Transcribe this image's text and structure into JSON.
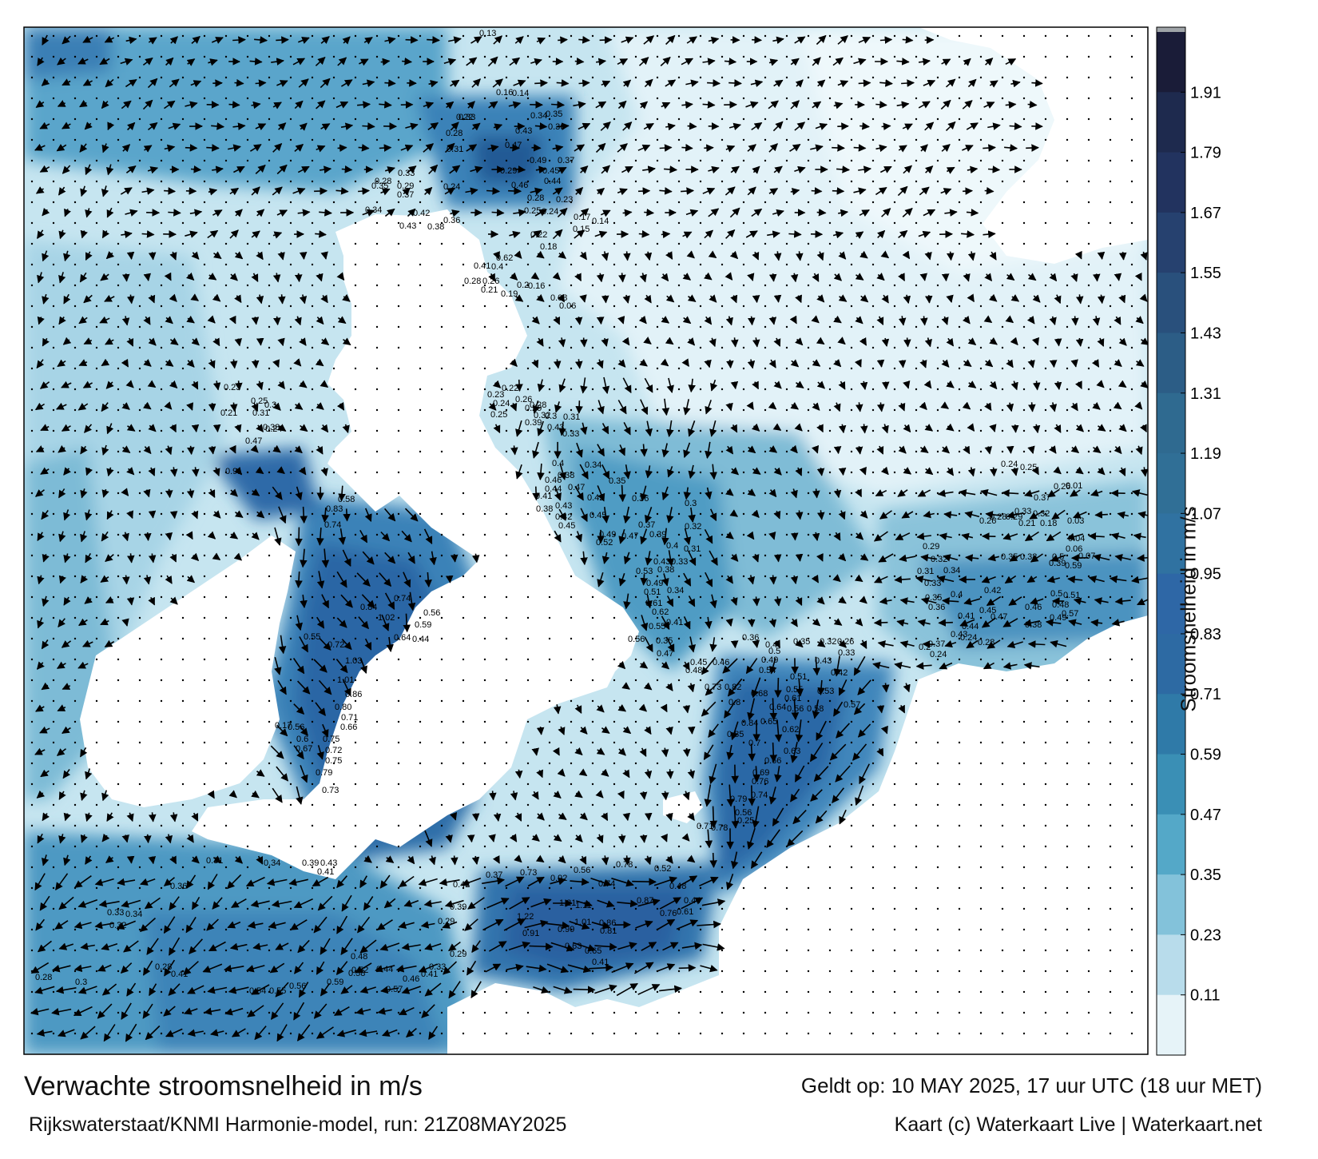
{
  "map": {
    "title": "Verwachte stroomsnelheid in m/s",
    "subtitle": "Rijkswaterstaat/KNMI Harmonie-model, run: 21Z08MAY2025",
    "valid_time": "Geldt op: 10 MAY 2025, 17 uur UTC (18 uur MET)",
    "credit": "Kaart (c) Waterkaart Live | Waterkaart.net",
    "region": "North Sea, English Channel, Irish Sea",
    "land_color": "#ffffff",
    "frame_color": "#000000"
  },
  "colorbar": {
    "label": "Stroomsnelheid in m/s",
    "ticks": [
      "1.91",
      "1.79",
      "1.67",
      "1.55",
      "1.43",
      "1.31",
      "1.19",
      "1.07",
      "0.95",
      "0.83",
      "0.71",
      "0.59",
      "0.47",
      "0.35",
      "0.23",
      "0.11"
    ],
    "colors": [
      "#1a1c38",
      "#1e2a4e",
      "#22335f",
      "#26416f",
      "#29507c",
      "#2c5d86",
      "#2f6a90",
      "#306f96",
      "#3072a1",
      "#2e67a6",
      "#2d6aa3",
      "#2f7aa8",
      "#3a8fb5",
      "#54a8c8",
      "#83c2da",
      "#b8dceb",
      "#e6f3f8"
    ],
    "top_marker": "#9fa4a8"
  },
  "labels": [
    [
      "0.91",
      282,
      593
    ],
    [
      "0.83",
      408,
      640
    ],
    [
      "0.58",
      423,
      628
    ],
    [
      "0.74",
      406,
      660
    ],
    [
      "0.72",
      410,
      810
    ],
    [
      "1.03",
      432,
      830
    ],
    [
      "1.01",
      422,
      854
    ],
    [
      "0.86",
      432,
      872
    ],
    [
      "0.80",
      419,
      888
    ],
    [
      "0.71",
      427,
      901
    ],
    [
      "0.66",
      426,
      913
    ],
    [
      "0.75",
      404,
      928
    ],
    [
      "0.72",
      407,
      942
    ],
    [
      "0.67",
      370,
      940
    ],
    [
      "0.79",
      395,
      970
    ],
    [
      "0.73",
      403,
      992
    ],
    [
      "0.84",
      451,
      763
    ],
    [
      "1.02",
      473,
      776
    ],
    [
      "0.74",
      493,
      752
    ],
    [
      "0.59",
      519,
      785
    ],
    [
      "0.56",
      530,
      770
    ],
    [
      "0.64",
      493,
      801
    ],
    [
      "0.44",
      516,
      803
    ],
    [
      "0.55",
      380,
      800
    ],
    [
      "0.43",
      401,
      1083
    ],
    [
      "0.39",
      378,
      1083
    ],
    [
      "0.41",
      397,
      1094
    ],
    [
      "0.34",
      330,
      1083
    ],
    [
      "0.31",
      258,
      1080
    ],
    [
      "0.36",
      213,
      1112
    ],
    [
      "0.33",
      134,
      1145
    ],
    [
      "0.34",
      157,
      1147
    ],
    [
      "0.32",
      137,
      1161
    ],
    [
      "0.28",
      194,
      1213
    ],
    [
      "0.41",
      214,
      1222
    ],
    [
      "0.3",
      94,
      1232
    ],
    [
      "0.28",
      44,
      1226
    ],
    [
      "0.54",
      312,
      1243
    ],
    [
      "0.55",
      337,
      1243
    ],
    [
      "0.56",
      362,
      1237
    ],
    [
      "0.59",
      409,
      1232
    ],
    [
      "0.58",
      436,
      1221
    ],
    [
      "0.57",
      483,
      1241
    ],
    [
      "0.46",
      504,
      1228
    ],
    [
      "0.41",
      527,
      1222
    ],
    [
      "0.33",
      537,
      1213
    ],
    [
      "0.42",
      567,
      1110
    ],
    [
      "0.29",
      548,
      1156
    ],
    [
      "0.39",
      563,
      1138
    ],
    [
      "0.37",
      608,
      1098
    ],
    [
      "0.73",
      651,
      1095
    ],
    [
      "0.92",
      689,
      1102
    ],
    [
      "0.56",
      718,
      1092
    ],
    [
      "0.74",
      749,
      1109
    ],
    [
      "0.78",
      771,
      1085
    ],
    [
      "0.52",
      819,
      1090
    ],
    [
      "0.87",
      797,
      1130
    ],
    [
      "1.21",
      700,
      1133
    ],
    [
      "1.22",
      647,
      1150
    ],
    [
      "1.11",
      720,
      1136
    ],
    [
      "0.99",
      698,
      1166
    ],
    [
      "1.01",
      719,
      1157
    ],
    [
      "0.86",
      750,
      1158
    ],
    [
      "0.81",
      751,
      1168
    ],
    [
      "0.91",
      654,
      1171
    ],
    [
      "0.63",
      707,
      1187
    ],
    [
      "0.65",
      732,
      1193
    ],
    [
      "0.41",
      741,
      1207
    ],
    [
      "0.76",
      826,
      1146
    ],
    [
      "0.61",
      847,
      1144
    ],
    [
      "0.44",
      856,
      1130
    ],
    [
      "0.48",
      838,
      1112
    ],
    [
      "0.78",
      890,
      1039
    ],
    [
      "0.71",
      872,
      1037
    ],
    [
      "0.56",
      920,
      1020
    ],
    [
      "0.25",
      923,
      1030
    ],
    [
      "0.79",
      914,
      1003
    ],
    [
      "0.76",
      941,
      981
    ],
    [
      "0.74",
      940,
      998
    ],
    [
      "0.69",
      942,
      970
    ],
    [
      "0.66",
      957,
      955
    ],
    [
      "0.7",
      937,
      933
    ],
    [
      "0.63",
      981,
      943
    ],
    [
      "0.53",
      1023,
      868
    ],
    [
      "0.65",
      952,
      906
    ],
    [
      "0.84",
      928,
      908
    ],
    [
      "0.62",
      979,
      916
    ],
    [
      "0.61",
      982,
      877
    ],
    [
      "0.56",
      985,
      890
    ],
    [
      "0.58",
      1010,
      890
    ],
    [
      "0.55",
      984,
      866
    ],
    [
      "0.64",
      963,
      888
    ],
    [
      "0.68",
      940,
      871
    ],
    [
      "0.8",
      912,
      882
    ],
    [
      "0.85",
      910,
      922
    ],
    [
      "0.57",
      1056,
      885
    ],
    [
      "0.49",
      953,
      829
    ],
    [
      "0.54",
      950,
      842
    ],
    [
      "0.51",
      989,
      850
    ],
    [
      "0.5",
      962,
      818
    ],
    [
      "0.47",
      822,
      821
    ],
    [
      "0.48",
      858,
      842
    ],
    [
      "0.45",
      864,
      832
    ],
    [
      "0.46",
      892,
      832
    ],
    [
      "0.73",
      882,
      863
    ],
    [
      "0.82",
      907,
      863
    ],
    [
      "0.36",
      929,
      801
    ],
    [
      "0.4",
      958,
      810
    ],
    [
      "0.43",
      1020,
      830
    ],
    [
      "0.42",
      1040,
      845
    ],
    [
      "0.33",
      1049,
      820
    ],
    [
      "0.26",
      1048,
      806
    ],
    [
      "0.32",
      1026,
      806
    ],
    [
      "0.35",
      993,
      806
    ],
    [
      "0.4",
      691,
      583
    ],
    [
      "0.38",
      698,
      598
    ],
    [
      "0.42",
      735,
      626
    ],
    [
      "0.43",
      695,
      636
    ],
    [
      "0.45",
      738,
      648
    ],
    [
      "0.34",
      732,
      585
    ],
    [
      "0.35",
      762,
      605
    ],
    [
      "0.36",
      791,
      627
    ],
    [
      "0.37",
      799,
      660
    ],
    [
      "0.39",
      813,
      672
    ],
    [
      "0.47",
      778,
      674
    ],
    [
      "0.49",
      750,
      672
    ],
    [
      "0.52",
      746,
      682
    ],
    [
      "0.53",
      796,
      718
    ],
    [
      "0.43",
      818,
      706
    ],
    [
      "0.38",
      823,
      716
    ],
    [
      "0.33",
      840,
      706
    ],
    [
      "0.49",
      809,
      733
    ],
    [
      "0.51",
      806,
      744
    ],
    [
      "0.34",
      835,
      742
    ],
    [
      "0.61",
      808,
      758
    ],
    [
      "0.62",
      816,
      769
    ],
    [
      "0.41",
      834,
      782
    ],
    [
      "0.55",
      812,
      787
    ],
    [
      "0.35",
      821,
      805
    ],
    [
      "0.56",
      786,
      803
    ],
    [
      "0.3",
      857,
      633
    ],
    [
      "0.32",
      857,
      662
    ],
    [
      "0.4",
      834,
      686
    ],
    [
      "0.31",
      856,
      690
    ],
    [
      "0.46",
      682,
      604
    ],
    [
      "0.44",
      682,
      615
    ],
    [
      "0.41",
      670,
      624
    ],
    [
      "0.38",
      671,
      640
    ],
    [
      "0.42",
      695,
      650
    ],
    [
      "0.45",
      699,
      661
    ],
    [
      "0.47",
      711,
      613
    ],
    [
      "0.39",
      657,
      532
    ],
    [
      "0.43",
      685,
      538
    ],
    [
      "0.33",
      704,
      546
    ],
    [
      "0.3",
      682,
      524
    ],
    [
      "0.31",
      705,
      525
    ],
    [
      "0.32",
      668,
      523
    ],
    [
      "0.29",
      657,
      514
    ],
    [
      "0.25",
      614,
      522
    ],
    [
      "0.24",
      617,
      508
    ],
    [
      "0.23",
      610,
      497
    ],
    [
      "0.22",
      628,
      489
    ],
    [
      "0.28",
      663,
      510
    ],
    [
      "0.26",
      645,
      503
    ],
    [
      "0.47",
      307,
      555
    ],
    [
      "0.31",
      316,
      520
    ],
    [
      "0.3",
      331,
      510
    ],
    [
      "0.25",
      314,
      505
    ],
    [
      "0.38",
      329,
      538
    ],
    [
      "0.24",
      332,
      540
    ],
    [
      "0.23",
      280,
      488
    ],
    [
      "0.21",
      276,
      520
    ],
    [
      "0.29",
      563,
      1197
    ],
    [
      "0.44",
      471,
      1216
    ],
    [
      "0.52",
      440,
      1217
    ],
    [
      "0.48",
      439,
      1200
    ],
    [
      "0.17",
      344,
      911
    ],
    [
      "0.56",
      360,
      913
    ],
    [
      "0.6",
      371,
      928
    ],
    [
      "0.75",
      407,
      955
    ],
    [
      "0.5",
      1315,
      746
    ],
    [
      "0.51",
      1331,
      748
    ],
    [
      "0.48",
      1317,
      760
    ],
    [
      "0.49",
      1314,
      776
    ],
    [
      "0.57",
      1329,
      771
    ],
    [
      "0.46",
      1283,
      763
    ],
    [
      "0.47",
      1240,
      775
    ],
    [
      "0.45",
      1226,
      767
    ],
    [
      "0.41",
      1199,
      774
    ],
    [
      "0.44",
      1204,
      787
    ],
    [
      "0.42",
      1232,
      742
    ],
    [
      "0.4",
      1190,
      747
    ],
    [
      "0.34",
      1181,
      717
    ],
    [
      "0.32",
      1165,
      703
    ],
    [
      "0.29",
      1155,
      687
    ],
    [
      "0.31",
      1148,
      718
    ],
    [
      "0.33",
      1157,
      733
    ],
    [
      "0.35",
      1158,
      751
    ],
    [
      "0.36",
      1162,
      763
    ],
    [
      "0.43",
      1190,
      797
    ],
    [
      "0.37",
      1162,
      809
    ],
    [
      "0.24",
      1164,
      822
    ],
    [
      "0.2",
      1150,
      813
    ],
    [
      "0.24",
      1202,
      801
    ],
    [
      "0.28",
      1224,
      807
    ],
    [
      "0.38",
      1283,
      785
    ],
    [
      "0.35",
      1253,
      700
    ],
    [
      "0.38",
      1277,
      700
    ],
    [
      "0.39",
      1313,
      708
    ],
    [
      "0.59",
      1333,
      711
    ],
    [
      "0.5",
      1317,
      700
    ],
    [
      "0.24",
      1253,
      584
    ],
    [
      "0.25",
      1277,
      588
    ],
    [
      "0.37",
      1294,
      626
    ],
    [
      "0.33",
      1270,
      643
    ],
    [
      "0.32",
      1293,
      646
    ],
    [
      "0.28",
      1239,
      650
    ],
    [
      "0.29",
      1259,
      650
    ],
    [
      "0.26",
      1226,
      655
    ],
    [
      "0.21",
      1275,
      658
    ],
    [
      "0.18",
      1302,
      658
    ],
    [
      "0.26",
      1319,
      612
    ],
    [
      "0.01",
      1334,
      611
    ],
    [
      "0.03",
      1336,
      655
    ],
    [
      "0.06",
      1334,
      690
    ],
    [
      "0.04",
      1337,
      677
    ],
    [
      "0.07",
      1350,
      699
    ],
    [
      "0.13",
      600,
      45
    ],
    [
      "0.16",
      621,
      119
    ],
    [
      "0.14",
      641,
      120
    ],
    [
      "0.34",
      664,
      148
    ],
    [
      "0.35",
      683,
      146
    ],
    [
      "0.36",
      686,
      162
    ],
    [
      "0.47",
      632,
      185
    ],
    [
      "0.43",
      645,
      167
    ],
    [
      "0.49",
      663,
      204
    ],
    [
      "0.37",
      698,
      204
    ],
    [
      "0.45",
      679,
      217
    ],
    [
      "0.44",
      681,
      230
    ],
    [
      "0.46",
      640,
      235
    ],
    [
      "0.28",
      660,
      251
    ],
    [
      "0.29",
      626,
      217
    ],
    [
      "0.25",
      656,
      267
    ],
    [
      "0.24",
      678,
      268
    ],
    [
      "0.22",
      664,
      297
    ],
    [
      "0.18",
      676,
      312
    ],
    [
      "0.23",
      696,
      253
    ],
    [
      "0.17",
      718,
      275
    ],
    [
      "0.15",
      717,
      290
    ],
    [
      "0.14",
      741,
      280
    ],
    [
      "0.62",
      621,
      326
    ],
    [
      "0.41",
      593,
      336
    ],
    [
      "0.4",
      615,
      337
    ],
    [
      "0.28",
      581,
      355
    ],
    [
      "0.26",
      604,
      355
    ],
    [
      "0.21",
      602,
      366
    ],
    [
      "0.2",
      647,
      360
    ],
    [
      "0.16",
      661,
      361
    ],
    [
      "0.19",
      627,
      371
    ],
    [
      "0.08",
      689,
      376
    ],
    [
      "0.06",
      700,
      386
    ],
    [
      "0.33",
      574,
      150
    ],
    [
      "0.22",
      571,
      150
    ],
    [
      "0.28",
      558,
      170
    ],
    [
      "0.31",
      559,
      190
    ],
    [
      "0.33",
      498,
      220
    ],
    [
      "0.35",
      465,
      236
    ],
    [
      "0.37",
      497,
      247
    ],
    [
      "0.28",
      469,
      230
    ],
    [
      "0.29",
      497,
      236
    ],
    [
      "0.24",
      555,
      237
    ],
    [
      "0.34",
      457,
      266
    ],
    [
      "0.42",
      517,
      270
    ],
    [
      "0.43",
      500,
      286
    ],
    [
      "0.38",
      535,
      287
    ],
    [
      "0.36",
      555,
      279
    ]
  ]
}
